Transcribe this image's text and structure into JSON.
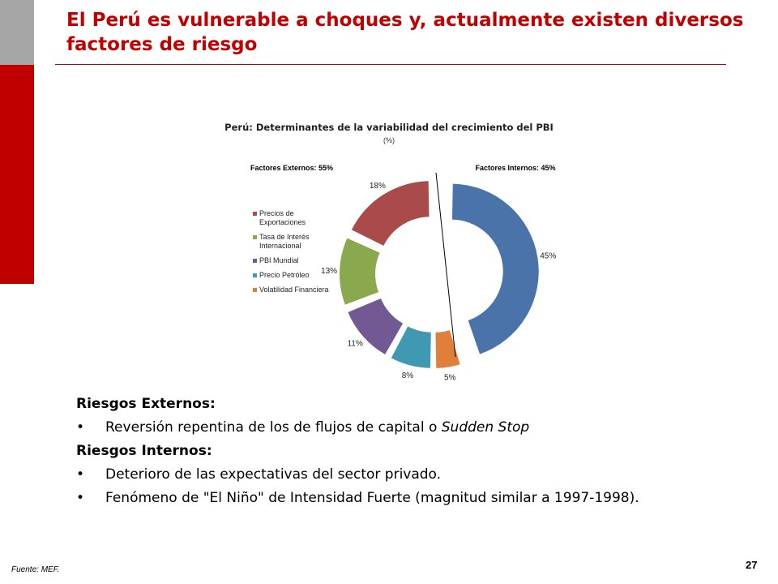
{
  "slide": {
    "title": "El Perú es vulnerable a choques y, actualmente existen diversos factores de riesgo",
    "footnote": "Fuente: MEF.",
    "page_number": "27",
    "accent_color": "#c00000"
  },
  "body": {
    "external_heading": "Riesgos Externos:",
    "external_bullets": [
      {
        "prefix": "Reversión repentina de los de flujos de capital o ",
        "emphasis": "Sudden Stop"
      }
    ],
    "internal_heading": "Riesgos Internos:",
    "internal_bullets": [
      "Deterioro de las expectativas del sector privado.",
      "Fenómeno de \"El Niño\" de Intensidad Fuerte (magnitud similar a 1997-1998)."
    ],
    "bullet_char": "•"
  },
  "chart_data": {
    "type": "pie",
    "subtype": "exploded-doughnut",
    "title": "Perú: Determinantes de la variabilidad del crecimiento del PBI",
    "subtitle": "(%)",
    "group_labels": {
      "external": "Factores Externos: 55%",
      "internal": "Factores Internos: 45%"
    },
    "legend_position": "left",
    "slices": [
      {
        "name": "Factor interno (sin etiqueta en leyenda)",
        "in_legend": false,
        "value": 45,
        "label": "45%",
        "color": "#4a73a9",
        "group": "internal"
      },
      {
        "name": "Volatilidad Financiera",
        "in_legend": true,
        "value": 5,
        "label": "5%",
        "color": "#e07f3a",
        "group": "external"
      },
      {
        "name": "Precio Petróleo",
        "in_legend": true,
        "value": 8,
        "label": "8%",
        "color": "#4198b3",
        "group": "external"
      },
      {
        "name": "PBI Mundial",
        "in_legend": true,
        "value": 11,
        "label": "11%",
        "color": "#725993",
        "group": "external"
      },
      {
        "name": "Tasa de Interés Internacional",
        "in_legend": true,
        "value": 13,
        "label": "13%",
        "color": "#8aa84d",
        "group": "external"
      },
      {
        "name": "Precios de Exportaciones",
        "in_legend": true,
        "value": 18,
        "label": "18%",
        "color": "#a94b4b",
        "group": "external"
      }
    ],
    "legend_order": [
      "Precios de Exportaciones",
      "Tasa de Interés Internacional",
      "PBI Mundial",
      "Precio Petróleo",
      "Volatilidad Financiera"
    ]
  }
}
